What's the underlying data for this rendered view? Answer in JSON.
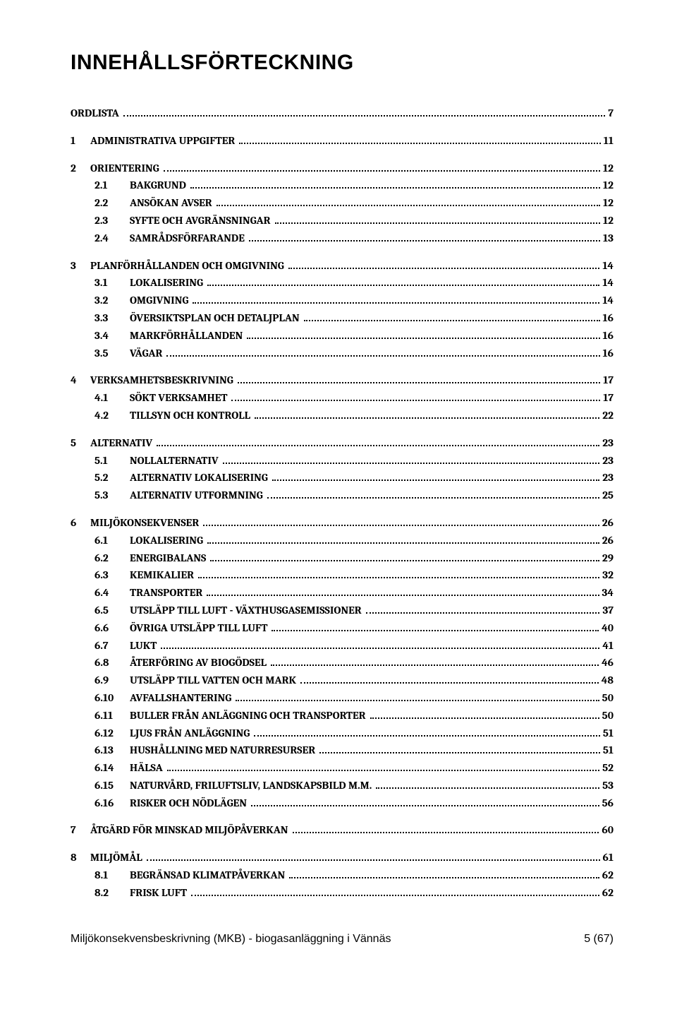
{
  "title": "INNEHÅLLSFÖRTECKNING",
  "toc": [
    {
      "level": 0,
      "num": "",
      "label": "ORDLISTA",
      "page": "7"
    },
    {
      "level": 1,
      "num": "1",
      "label": "ADMINISTRATIVA UPPGIFTER",
      "page": "11"
    },
    {
      "level": 1,
      "num": "2",
      "label": "ORIENTERING",
      "page": "12"
    },
    {
      "level": 2,
      "num": "2.1",
      "label": "BAKGRUND",
      "page": "12"
    },
    {
      "level": 2,
      "num": "2.2",
      "label": "ANSÖKAN AVSER",
      "page": "12"
    },
    {
      "level": 2,
      "num": "2.3",
      "label": "SYFTE OCH AVGRÄNSNINGAR",
      "page": "12"
    },
    {
      "level": 2,
      "num": "2.4",
      "label": "SAMRÅDSFÖRFARANDE",
      "page": "13"
    },
    {
      "level": 1,
      "num": "3",
      "label": "PLANFÖRHÅLLANDEN OCH OMGIVNING",
      "page": "14"
    },
    {
      "level": 2,
      "num": "3.1",
      "label": "LOKALISERING",
      "page": "14"
    },
    {
      "level": 2,
      "num": "3.2",
      "label": "OMGIVNING",
      "page": "14"
    },
    {
      "level": 2,
      "num": "3.3",
      "label": "ÖVERSIKTSPLAN OCH DETALJPLAN",
      "page": "16"
    },
    {
      "level": 2,
      "num": "3.4",
      "label": "MARKFÖRHÅLLANDEN",
      "page": "16"
    },
    {
      "level": 2,
      "num": "3.5",
      "label": "VÄGAR",
      "page": "16"
    },
    {
      "level": 1,
      "num": "4",
      "label": "VERKSAMHETSBESKRIVNING",
      "page": "17"
    },
    {
      "level": 2,
      "num": "4.1",
      "label": "SÖKT VERKSAMHET",
      "page": "17"
    },
    {
      "level": 2,
      "num": "4.2",
      "label": "TILLSYN OCH KONTROLL",
      "page": "22"
    },
    {
      "level": 1,
      "num": "5",
      "label": "ALTERNATIV",
      "page": "23"
    },
    {
      "level": 2,
      "num": "5.1",
      "label": "NOLLALTERNATIV",
      "page": "23"
    },
    {
      "level": 2,
      "num": "5.2",
      "label": "ALTERNATIV LOKALISERING",
      "page": "23"
    },
    {
      "level": 2,
      "num": "5.3",
      "label": "ALTERNATIV UTFORMNING",
      "page": "25"
    },
    {
      "level": 1,
      "num": "6",
      "label": "MILJÖKONSEKVENSER",
      "page": "26"
    },
    {
      "level": 2,
      "num": "6.1",
      "label": "LOKALISERING",
      "page": "26"
    },
    {
      "level": 2,
      "num": "6.2",
      "label": "ENERGIBALANS",
      "page": "29"
    },
    {
      "level": 2,
      "num": "6.3",
      "label": "KEMIKALIER",
      "page": "32"
    },
    {
      "level": 2,
      "num": "6.4",
      "label": "TRANSPORTER",
      "page": "34"
    },
    {
      "level": 2,
      "num": "6.5",
      "label": "UTSLÄPP TILL LUFT - VÄXTHUSGASEMISSIONER",
      "page": "37"
    },
    {
      "level": 2,
      "num": "6.6",
      "label": "ÖVRIGA UTSLÄPP TILL LUFT",
      "page": "40"
    },
    {
      "level": 2,
      "num": "6.7",
      "label": "LUKT",
      "page": "41"
    },
    {
      "level": 2,
      "num": "6.8",
      "label": "ÅTERFÖRING AV BIOGÖDSEL",
      "page": "46"
    },
    {
      "level": 2,
      "num": "6.9",
      "label": "UTSLÄPP TILL VATTEN OCH MARK",
      "page": "48"
    },
    {
      "level": 2,
      "num": "6.10",
      "label": "AVFALLSHANTERING",
      "page": "50"
    },
    {
      "level": 2,
      "num": "6.11",
      "label": "BULLER FRÅN ANLÄGGNING OCH TRANSPORTER",
      "page": "50"
    },
    {
      "level": 2,
      "num": "6.12",
      "label": "LJUS FRÅN ANLÄGGNING",
      "page": "51"
    },
    {
      "level": 2,
      "num": "6.13",
      "label": "HUSHÅLLNING MED NATURRESURSER",
      "page": "51"
    },
    {
      "level": 2,
      "num": "6.14",
      "label": "HÄLSA",
      "page": "52"
    },
    {
      "level": 2,
      "num": "6.15",
      "label": "NATURVÅRD, FRILUFTSLIV, LANDSKAPSBILD M.M.",
      "page": "53"
    },
    {
      "level": 2,
      "num": "6.16",
      "label": "RISKER OCH NÖDLÄGEN",
      "page": "56"
    },
    {
      "level": 1,
      "num": "7",
      "label": "ÅTGÄRD FÖR MINSKAD MILJÖPÅVERKAN",
      "page": "60"
    },
    {
      "level": 1,
      "num": "8",
      "label": "MILJÖMÅL",
      "page": "61"
    },
    {
      "level": 2,
      "num": "8.1",
      "label": "BEGRÄNSAD KLIMATPÅVERKAN",
      "page": "62"
    },
    {
      "level": 2,
      "num": "8.2",
      "label": "FRISK LUFT",
      "page": "62"
    }
  ],
  "footer": {
    "left": "Miljökonsekvensbeskrivning (MKB) - biogasanläggning i Vännäs",
    "right": "5 (67)"
  }
}
